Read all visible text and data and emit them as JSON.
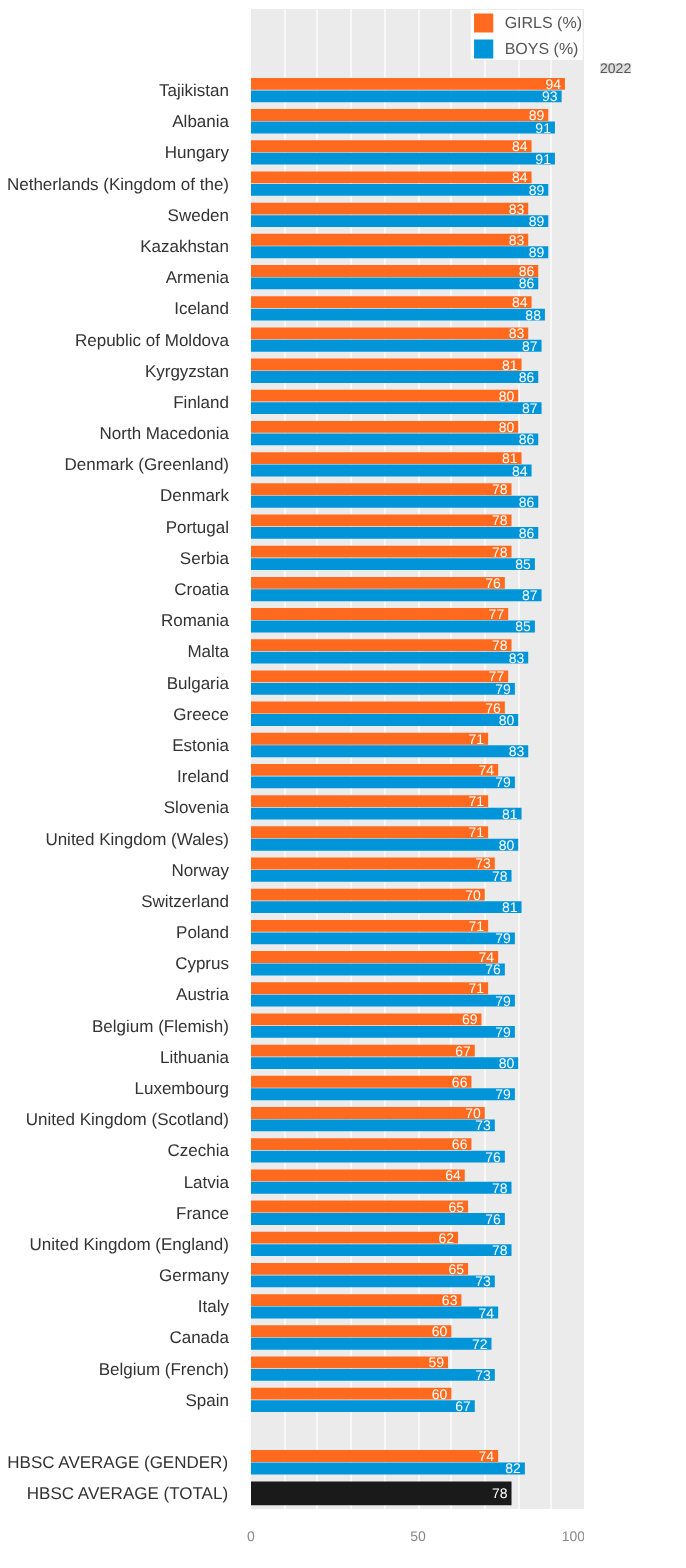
{
  "chart_data": {
    "type": "bar",
    "orientation": "horizontal",
    "categories": [
      "Tajikistan",
      "Albania",
      "Hungary",
      "Netherlands (Kingdom of the)",
      "Sweden",
      "Kazakhstan",
      "Armenia",
      "Iceland",
      "Republic of Moldova",
      "Kyrgyzstan",
      "Finland",
      "North Macedonia",
      "Denmark (Greenland)",
      "Denmark",
      "Portugal",
      "Serbia",
      "Croatia",
      "Romania",
      "Malta",
      "Bulgaria",
      "Greece",
      "Estonia",
      "Ireland",
      "Slovenia",
      "United Kingdom (Wales)",
      "Norway",
      "Switzerland",
      "Poland",
      "Cyprus",
      "Austria",
      "Belgium (Flemish)",
      "Lithuania",
      "Luxembourg",
      "United Kingdom (Scotland)",
      "Czechia",
      "Latvia",
      "France",
      "United Kingdom (England)",
      "Germany",
      "Italy",
      "Canada",
      "Belgium (French)",
      "Spain",
      null,
      "HBSC AVERAGE (GENDER)",
      "HBSC AVERAGE (TOTAL)"
    ],
    "series": [
      {
        "name": "GIRLS (%)",
        "color": "#ff6a1f",
        "values": [
          94,
          89,
          84,
          84,
          83,
          83,
          86,
          84,
          83,
          81,
          80,
          80,
          81,
          78,
          78,
          78,
          76,
          77,
          78,
          77,
          76,
          71,
          74,
          71,
          71,
          73,
          70,
          71,
          74,
          71,
          69,
          67,
          66,
          70,
          66,
          64,
          65,
          62,
          65,
          63,
          60,
          59,
          60,
          null,
          74,
          null
        ]
      },
      {
        "name": "BOYS (%)",
        "color": "#0095d9",
        "values": [
          93,
          91,
          91,
          89,
          89,
          89,
          86,
          88,
          87,
          86,
          87,
          86,
          84,
          86,
          86,
          85,
          87,
          85,
          83,
          79,
          80,
          83,
          79,
          81,
          80,
          78,
          81,
          79,
          76,
          79,
          79,
          80,
          79,
          73,
          76,
          78,
          76,
          78,
          73,
          74,
          72,
          73,
          67,
          null,
          82,
          null
        ]
      },
      {
        "color": "#1a1a1a",
        "values": [
          null,
          null,
          null,
          null,
          null,
          null,
          null,
          null,
          null,
          null,
          null,
          null,
          null,
          null,
          null,
          null,
          null,
          null,
          null,
          null,
          null,
          null,
          null,
          null,
          null,
          null,
          null,
          null,
          null,
          null,
          null,
          null,
          null,
          null,
          null,
          null,
          null,
          null,
          null,
          null,
          null,
          null,
          null,
          null,
          null,
          78
        ]
      }
    ],
    "xlim": [
      0,
      100
    ],
    "xticks": [
      0,
      {
        "value": 10,
        "label": null
      },
      {
        "value": 20,
        "label": null
      },
      {
        "value": 30,
        "label": null
      },
      {
        "value": 40,
        "label": null
      },
      50,
      {
        "value": 60,
        "label": null
      },
      {
        "value": 70,
        "label": null
      },
      {
        "value": 80,
        "label": null
      },
      {
        "value": 90,
        "label": null
      },
      100
    ],
    "grid": "x",
    "legend": "top right",
    "data_labels": true,
    "annotations": [
      "2022"
    ]
  }
}
